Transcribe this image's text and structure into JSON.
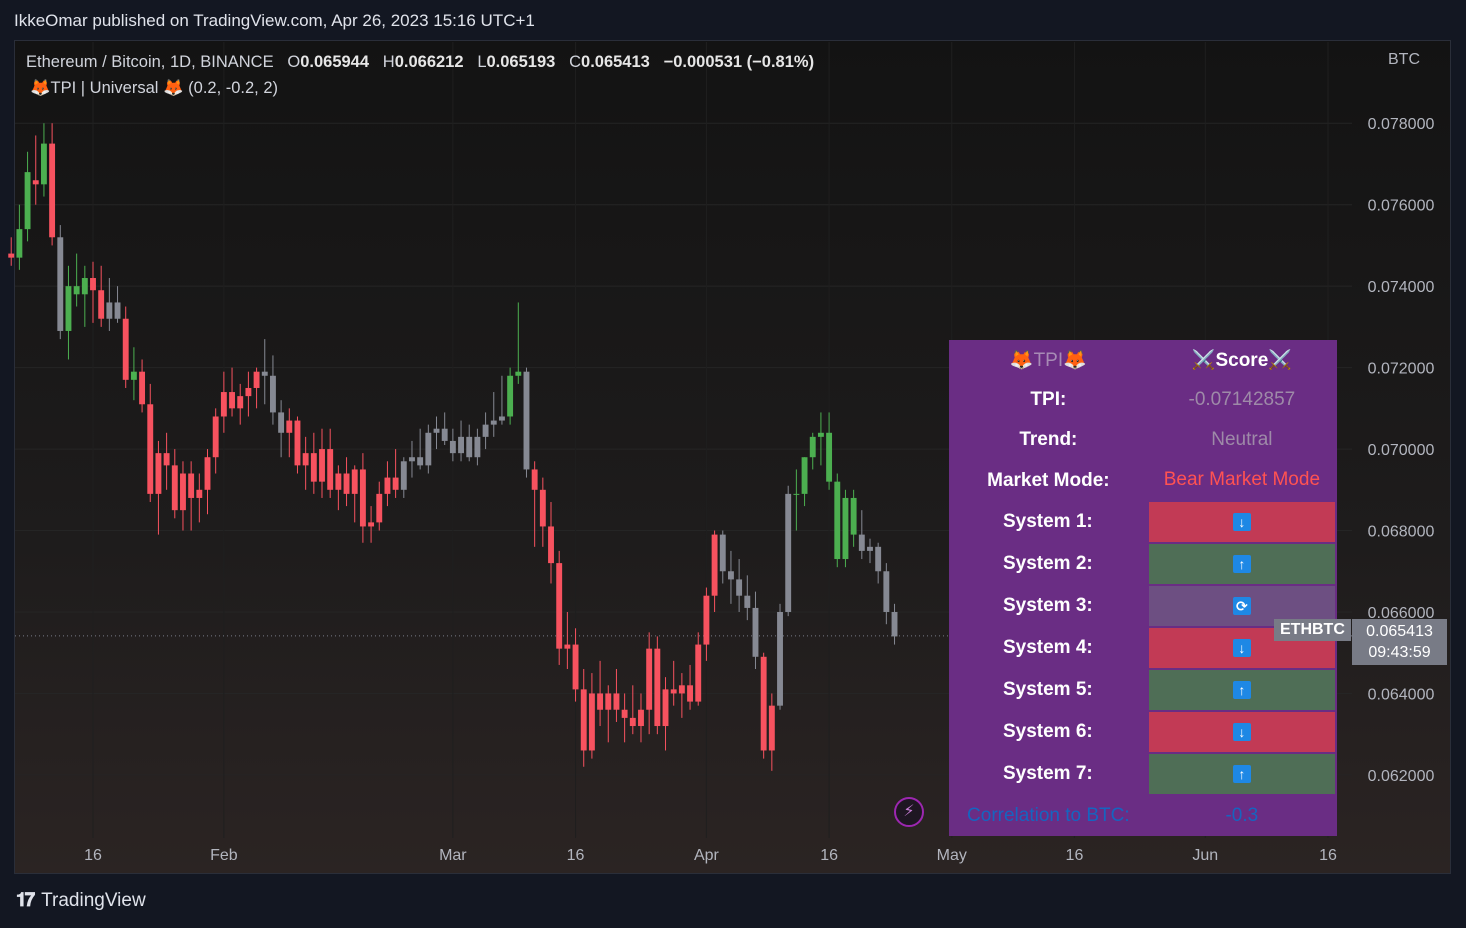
{
  "header": {
    "published": "IkkeOmar published on TradingView.com, Apr 26, 2023 15:16 UTC+1"
  },
  "legend": {
    "symbol": "Ethereum / Bitcoin, 1D, BINANCE",
    "o_label": "O",
    "o": "0.065944",
    "h_label": "H",
    "h": "0.066212",
    "l_label": "L",
    "l": "0.065193",
    "c_label": "C",
    "c": "0.065413",
    "change": "−0.000531 (−0.81%)",
    "indicator": "🦊TPI | Universal 🦊 (0.2, -0.2, 2)"
  },
  "axis_currency": "BTC",
  "table": {
    "header_left": "🦊TPI🦊",
    "header_right": "⚔️Score⚔️",
    "rows": [
      {
        "label": "TPI:",
        "value": "-0.07142857",
        "color": "#9e8aa8"
      },
      {
        "label": "Trend:",
        "value": "Neutral",
        "color": "#9e8aa8"
      },
      {
        "label": "Market Mode:",
        "value": "Bear Market Mode",
        "color": "#ff5252"
      }
    ],
    "systems": [
      {
        "label": "System 1:",
        "icon": "↓",
        "state": "red"
      },
      {
        "label": "System 2:",
        "icon": "↑",
        "state": "green"
      },
      {
        "label": "System 3:",
        "icon": "⟳",
        "state": "neutral"
      },
      {
        "label": "System 4:",
        "icon": "↓",
        "state": "red"
      },
      {
        "label": "System 5:",
        "icon": "↑",
        "state": "green"
      },
      {
        "label": "System 6:",
        "icon": "↓",
        "state": "red"
      },
      {
        "label": "System 7:",
        "icon": "↑",
        "state": "green"
      }
    ],
    "correlation_label": "Correlation to BTC:",
    "correlation_value": "-0.3"
  },
  "last": {
    "symbol": "ETHBTC",
    "price": "0.065413",
    "countdown": "09:43:59"
  },
  "brand": "TradingView",
  "chart_data": {
    "type": "candlestick",
    "title": "Ethereum / Bitcoin, 1D, BINANCE",
    "ylabel": "BTC",
    "ylim": [
      0.0605,
      0.0797
    ],
    "y_ticks": [
      "0.078000",
      "0.076000",
      "0.074000",
      "0.072000",
      "0.070000",
      "0.068000",
      "0.066000",
      "0.064000",
      "0.062000"
    ],
    "y_tick_values": [
      0.078,
      0.076,
      0.074,
      0.072,
      0.07,
      0.068,
      0.066,
      0.064,
      0.062
    ],
    "x_ticks": [
      "16",
      "Feb",
      "Mar",
      "16",
      "Apr",
      "16",
      "May",
      "16",
      "Jun",
      "16"
    ],
    "x_tick_dates": [
      "2023-01-16",
      "2023-02-01",
      "2023-03-01",
      "2023-03-16",
      "2023-04-01",
      "2023-04-16",
      "2023-05-01",
      "2023-05-16",
      "2023-06-01",
      "2023-06-16"
    ],
    "start_date": "2023-01-06",
    "candles": [
      {
        "o": 0.0748,
        "h": 0.0752,
        "l": 0.0745,
        "c": 0.0747,
        "s": "r"
      },
      {
        "o": 0.0747,
        "h": 0.076,
        "l": 0.0744,
        "c": 0.0754,
        "s": "g"
      },
      {
        "o": 0.0754,
        "h": 0.0773,
        "l": 0.0751,
        "c": 0.0768,
        "s": "g"
      },
      {
        "o": 0.0766,
        "h": 0.0777,
        "l": 0.076,
        "c": 0.0765,
        "s": "r"
      },
      {
        "o": 0.0765,
        "h": 0.078,
        "l": 0.0762,
        "c": 0.0775,
        "s": "g"
      },
      {
        "o": 0.0775,
        "h": 0.078,
        "l": 0.075,
        "c": 0.0752,
        "s": "r"
      },
      {
        "o": 0.0752,
        "h": 0.0755,
        "l": 0.0727,
        "c": 0.0729,
        "s": "n"
      },
      {
        "o": 0.0729,
        "h": 0.0745,
        "l": 0.0722,
        "c": 0.074,
        "s": "g"
      },
      {
        "o": 0.074,
        "h": 0.0748,
        "l": 0.0735,
        "c": 0.0738,
        "s": "g"
      },
      {
        "o": 0.0738,
        "h": 0.0745,
        "l": 0.073,
        "c": 0.0742,
        "s": "g"
      },
      {
        "o": 0.0742,
        "h": 0.0746,
        "l": 0.0731,
        "c": 0.0739,
        "s": "r"
      },
      {
        "o": 0.0739,
        "h": 0.0745,
        "l": 0.073,
        "c": 0.0732,
        "s": "r"
      },
      {
        "o": 0.0732,
        "h": 0.0742,
        "l": 0.0729,
        "c": 0.0736,
        "s": "n"
      },
      {
        "o": 0.0736,
        "h": 0.074,
        "l": 0.0731,
        "c": 0.0732,
        "s": "n"
      },
      {
        "o": 0.0732,
        "h": 0.0735,
        "l": 0.0715,
        "c": 0.0717,
        "s": "r"
      },
      {
        "o": 0.0717,
        "h": 0.0725,
        "l": 0.0712,
        "c": 0.0719,
        "s": "g"
      },
      {
        "o": 0.0719,
        "h": 0.0722,
        "l": 0.0709,
        "c": 0.0711,
        "s": "r"
      },
      {
        "o": 0.0711,
        "h": 0.0716,
        "l": 0.0687,
        "c": 0.0689,
        "s": "r"
      },
      {
        "o": 0.0689,
        "h": 0.0702,
        "l": 0.0679,
        "c": 0.0699,
        "s": "r"
      },
      {
        "o": 0.0699,
        "h": 0.0704,
        "l": 0.069,
        "c": 0.0696,
        "s": "r"
      },
      {
        "o": 0.0696,
        "h": 0.07,
        "l": 0.0683,
        "c": 0.0685,
        "s": "r"
      },
      {
        "o": 0.0685,
        "h": 0.0697,
        "l": 0.068,
        "c": 0.0694,
        "s": "r"
      },
      {
        "o": 0.0694,
        "h": 0.0697,
        "l": 0.068,
        "c": 0.0688,
        "s": "r"
      },
      {
        "o": 0.0688,
        "h": 0.0694,
        "l": 0.0682,
        "c": 0.069,
        "s": "r"
      },
      {
        "o": 0.069,
        "h": 0.07,
        "l": 0.0684,
        "c": 0.0698,
        "s": "r"
      },
      {
        "o": 0.0698,
        "h": 0.071,
        "l": 0.0694,
        "c": 0.0708,
        "s": "r"
      },
      {
        "o": 0.0708,
        "h": 0.0719,
        "l": 0.0704,
        "c": 0.0714,
        "s": "r"
      },
      {
        "o": 0.0714,
        "h": 0.072,
        "l": 0.0708,
        "c": 0.071,
        "s": "r"
      },
      {
        "o": 0.071,
        "h": 0.0716,
        "l": 0.0706,
        "c": 0.0713,
        "s": "r"
      },
      {
        "o": 0.0713,
        "h": 0.0719,
        "l": 0.0708,
        "c": 0.0715,
        "s": "r"
      },
      {
        "o": 0.0715,
        "h": 0.072,
        "l": 0.071,
        "c": 0.0719,
        "s": "r"
      },
      {
        "o": 0.0719,
        "h": 0.0727,
        "l": 0.0711,
        "c": 0.0718,
        "s": "n"
      },
      {
        "o": 0.0718,
        "h": 0.0723,
        "l": 0.0706,
        "c": 0.0709,
        "s": "n"
      },
      {
        "o": 0.0709,
        "h": 0.0712,
        "l": 0.0698,
        "c": 0.0704,
        "s": "n"
      },
      {
        "o": 0.0704,
        "h": 0.071,
        "l": 0.0698,
        "c": 0.0707,
        "s": "r"
      },
      {
        "o": 0.0707,
        "h": 0.0708,
        "l": 0.0694,
        "c": 0.0696,
        "s": "r"
      },
      {
        "o": 0.0696,
        "h": 0.0703,
        "l": 0.069,
        "c": 0.0699,
        "s": "r"
      },
      {
        "o": 0.0699,
        "h": 0.0704,
        "l": 0.0689,
        "c": 0.0692,
        "s": "r"
      },
      {
        "o": 0.0692,
        "h": 0.0705,
        "l": 0.0688,
        "c": 0.07,
        "s": "r"
      },
      {
        "o": 0.07,
        "h": 0.0705,
        "l": 0.0688,
        "c": 0.069,
        "s": "r"
      },
      {
        "o": 0.069,
        "h": 0.0696,
        "l": 0.0685,
        "c": 0.0694,
        "s": "r"
      },
      {
        "o": 0.0694,
        "h": 0.0698,
        "l": 0.0686,
        "c": 0.0689,
        "s": "r"
      },
      {
        "o": 0.0689,
        "h": 0.0696,
        "l": 0.0682,
        "c": 0.0695,
        "s": "r"
      },
      {
        "o": 0.0695,
        "h": 0.0699,
        "l": 0.0677,
        "c": 0.0681,
        "s": "r"
      },
      {
        "o": 0.0681,
        "h": 0.0686,
        "l": 0.0677,
        "c": 0.0682,
        "s": "r"
      },
      {
        "o": 0.0682,
        "h": 0.0692,
        "l": 0.068,
        "c": 0.0689,
        "s": "r"
      },
      {
        "o": 0.0689,
        "h": 0.0697,
        "l": 0.0686,
        "c": 0.0693,
        "s": "r"
      },
      {
        "o": 0.0693,
        "h": 0.07,
        "l": 0.0688,
        "c": 0.069,
        "s": "r"
      },
      {
        "o": 0.069,
        "h": 0.0698,
        "l": 0.0688,
        "c": 0.0697,
        "s": "n"
      },
      {
        "o": 0.0697,
        "h": 0.0702,
        "l": 0.0693,
        "c": 0.0698,
        "s": "n"
      },
      {
        "o": 0.0698,
        "h": 0.0705,
        "l": 0.0695,
        "c": 0.0696,
        "s": "n"
      },
      {
        "o": 0.0696,
        "h": 0.0706,
        "l": 0.0694,
        "c": 0.0704,
        "s": "n"
      },
      {
        "o": 0.0704,
        "h": 0.0708,
        "l": 0.07,
        "c": 0.0705,
        "s": "n"
      },
      {
        "o": 0.0705,
        "h": 0.0709,
        "l": 0.0701,
        "c": 0.0702,
        "s": "n"
      },
      {
        "o": 0.0702,
        "h": 0.0705,
        "l": 0.0697,
        "c": 0.0699,
        "s": "n"
      },
      {
        "o": 0.0699,
        "h": 0.0707,
        "l": 0.0697,
        "c": 0.0703,
        "s": "n"
      },
      {
        "o": 0.0703,
        "h": 0.0706,
        "l": 0.0697,
        "c": 0.0698,
        "s": "n"
      },
      {
        "o": 0.0698,
        "h": 0.0705,
        "l": 0.0696,
        "c": 0.0703,
        "s": "n"
      },
      {
        "o": 0.0703,
        "h": 0.0709,
        "l": 0.07,
        "c": 0.0706,
        "s": "n"
      },
      {
        "o": 0.0706,
        "h": 0.0714,
        "l": 0.0703,
        "c": 0.0707,
        "s": "n"
      },
      {
        "o": 0.0707,
        "h": 0.0718,
        "l": 0.0706,
        "c": 0.0708,
        "s": "n"
      },
      {
        "o": 0.0708,
        "h": 0.072,
        "l": 0.0706,
        "c": 0.0718,
        "s": "g"
      },
      {
        "o": 0.0718,
        "h": 0.0736,
        "l": 0.0716,
        "c": 0.0719,
        "s": "g"
      },
      {
        "o": 0.0719,
        "h": 0.072,
        "l": 0.0693,
        "c": 0.0695,
        "s": "n"
      },
      {
        "o": 0.0695,
        "h": 0.0697,
        "l": 0.0676,
        "c": 0.069,
        "s": "r"
      },
      {
        "o": 0.069,
        "h": 0.0693,
        "l": 0.0676,
        "c": 0.0681,
        "s": "r"
      },
      {
        "o": 0.0681,
        "h": 0.0687,
        "l": 0.0667,
        "c": 0.0672,
        "s": "r"
      },
      {
        "o": 0.0672,
        "h": 0.0675,
        "l": 0.0647,
        "c": 0.0651,
        "s": "r"
      },
      {
        "o": 0.0651,
        "h": 0.066,
        "l": 0.0646,
        "c": 0.0652,
        "s": "r"
      },
      {
        "o": 0.0652,
        "h": 0.0656,
        "l": 0.0638,
        "c": 0.0641,
        "s": "r"
      },
      {
        "o": 0.0641,
        "h": 0.0646,
        "l": 0.0622,
        "c": 0.0626,
        "s": "r"
      },
      {
        "o": 0.0626,
        "h": 0.0645,
        "l": 0.0624,
        "c": 0.064,
        "s": "r"
      },
      {
        "o": 0.064,
        "h": 0.0648,
        "l": 0.0632,
        "c": 0.0636,
        "s": "r"
      },
      {
        "o": 0.0636,
        "h": 0.0642,
        "l": 0.0628,
        "c": 0.064,
        "s": "r"
      },
      {
        "o": 0.064,
        "h": 0.0646,
        "l": 0.0633,
        "c": 0.0636,
        "s": "r"
      },
      {
        "o": 0.0636,
        "h": 0.064,
        "l": 0.0628,
        "c": 0.0634,
        "s": "r"
      },
      {
        "o": 0.0634,
        "h": 0.0642,
        "l": 0.063,
        "c": 0.0632,
        "s": "r"
      },
      {
        "o": 0.0632,
        "h": 0.064,
        "l": 0.0628,
        "c": 0.0636,
        "s": "r"
      },
      {
        "o": 0.0636,
        "h": 0.0655,
        "l": 0.063,
        "c": 0.0651,
        "s": "r"
      },
      {
        "o": 0.0651,
        "h": 0.0654,
        "l": 0.063,
        "c": 0.0632,
        "s": "r"
      },
      {
        "o": 0.0632,
        "h": 0.0644,
        "l": 0.0626,
        "c": 0.0641,
        "s": "r"
      },
      {
        "o": 0.0641,
        "h": 0.0648,
        "l": 0.0637,
        "c": 0.064,
        "s": "r"
      },
      {
        "o": 0.064,
        "h": 0.0645,
        "l": 0.0634,
        "c": 0.0642,
        "s": "r"
      },
      {
        "o": 0.0642,
        "h": 0.0647,
        "l": 0.0636,
        "c": 0.0638,
        "s": "r"
      },
      {
        "o": 0.0638,
        "h": 0.0655,
        "l": 0.0637,
        "c": 0.0652,
        "s": "r"
      },
      {
        "o": 0.0652,
        "h": 0.0666,
        "l": 0.0648,
        "c": 0.0664,
        "s": "r"
      },
      {
        "o": 0.0664,
        "h": 0.068,
        "l": 0.066,
        "c": 0.0679,
        "s": "r"
      },
      {
        "o": 0.0679,
        "h": 0.068,
        "l": 0.0667,
        "c": 0.067,
        "s": "n"
      },
      {
        "o": 0.067,
        "h": 0.0675,
        "l": 0.0662,
        "c": 0.0668,
        "s": "n"
      },
      {
        "o": 0.0668,
        "h": 0.0673,
        "l": 0.066,
        "c": 0.0664,
        "s": "n"
      },
      {
        "o": 0.0664,
        "h": 0.0669,
        "l": 0.0658,
        "c": 0.0661,
        "s": "n"
      },
      {
        "o": 0.0661,
        "h": 0.0665,
        "l": 0.0646,
        "c": 0.0649,
        "s": "n"
      },
      {
        "o": 0.0649,
        "h": 0.065,
        "l": 0.0624,
        "c": 0.0626,
        "s": "r"
      },
      {
        "o": 0.0626,
        "h": 0.064,
        "l": 0.0621,
        "c": 0.0637,
        "s": "r"
      },
      {
        "o": 0.0637,
        "h": 0.0662,
        "l": 0.0636,
        "c": 0.066,
        "s": "n"
      },
      {
        "o": 0.066,
        "h": 0.0691,
        "l": 0.0659,
        "c": 0.0689,
        "s": "n"
      },
      {
        "o": 0.0689,
        "h": 0.0695,
        "l": 0.068,
        "c": 0.0689,
        "s": "g"
      },
      {
        "o": 0.0689,
        "h": 0.0698,
        "l": 0.0686,
        "c": 0.0698,
        "s": "g"
      },
      {
        "o": 0.0698,
        "h": 0.0704,
        "l": 0.0695,
        "c": 0.0703,
        "s": "g"
      },
      {
        "o": 0.0703,
        "h": 0.0709,
        "l": 0.0696,
        "c": 0.0704,
        "s": "g"
      },
      {
        "o": 0.0704,
        "h": 0.0709,
        "l": 0.069,
        "c": 0.0692,
        "s": "g"
      },
      {
        "o": 0.0692,
        "h": 0.0694,
        "l": 0.0671,
        "c": 0.0673,
        "s": "g"
      },
      {
        "o": 0.0673,
        "h": 0.069,
        "l": 0.0671,
        "c": 0.0688,
        "s": "g"
      },
      {
        "o": 0.0688,
        "h": 0.069,
        "l": 0.0676,
        "c": 0.0679,
        "s": "g"
      },
      {
        "o": 0.0679,
        "h": 0.0685,
        "l": 0.0673,
        "c": 0.0675,
        "s": "n"
      },
      {
        "o": 0.0675,
        "h": 0.0678,
        "l": 0.0672,
        "c": 0.0676,
        "s": "n"
      },
      {
        "o": 0.0676,
        "h": 0.0677,
        "l": 0.0667,
        "c": 0.067,
        "s": "n"
      },
      {
        "o": 0.067,
        "h": 0.0672,
        "l": 0.0657,
        "c": 0.066,
        "s": "n"
      },
      {
        "o": 0.066,
        "h": 0.0662,
        "l": 0.0652,
        "c": 0.0654,
        "s": "n"
      }
    ]
  }
}
